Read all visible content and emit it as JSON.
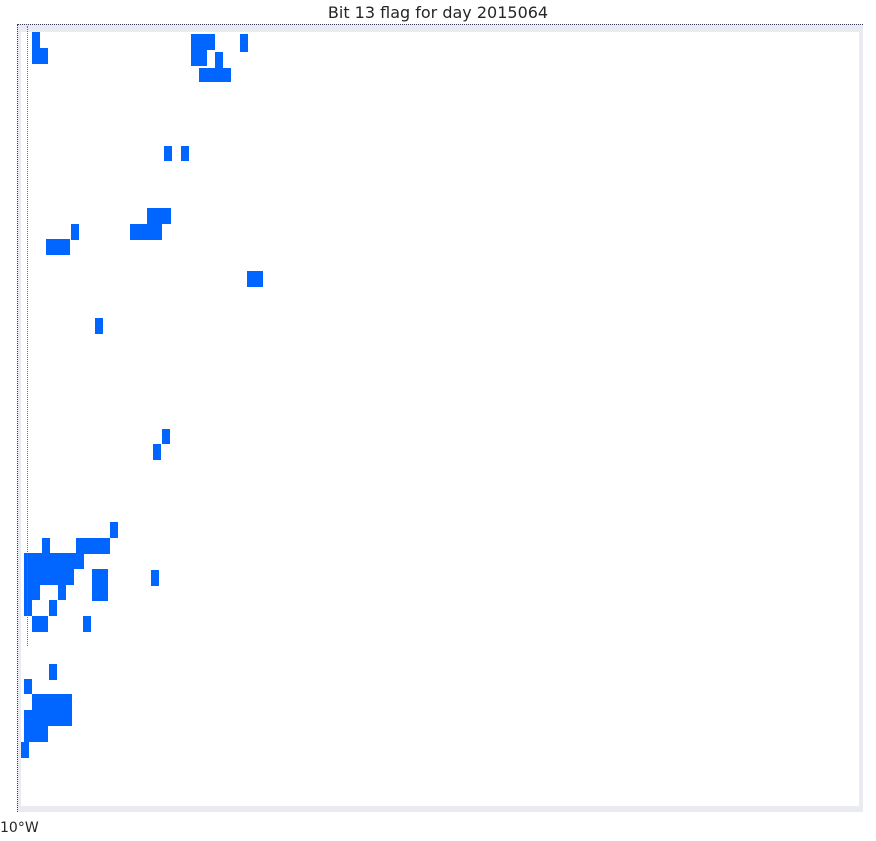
{
  "title": "Bit 13 flag for day 2015064",
  "axis": {
    "lon_tick_label": "10°W"
  },
  "colors": {
    "flag": "#0066ff",
    "frame": "#eaeaf2",
    "background": "#ffffff",
    "coastline": "#3a3a5a"
  },
  "map": {
    "flag_legend_value": 1
  }
}
